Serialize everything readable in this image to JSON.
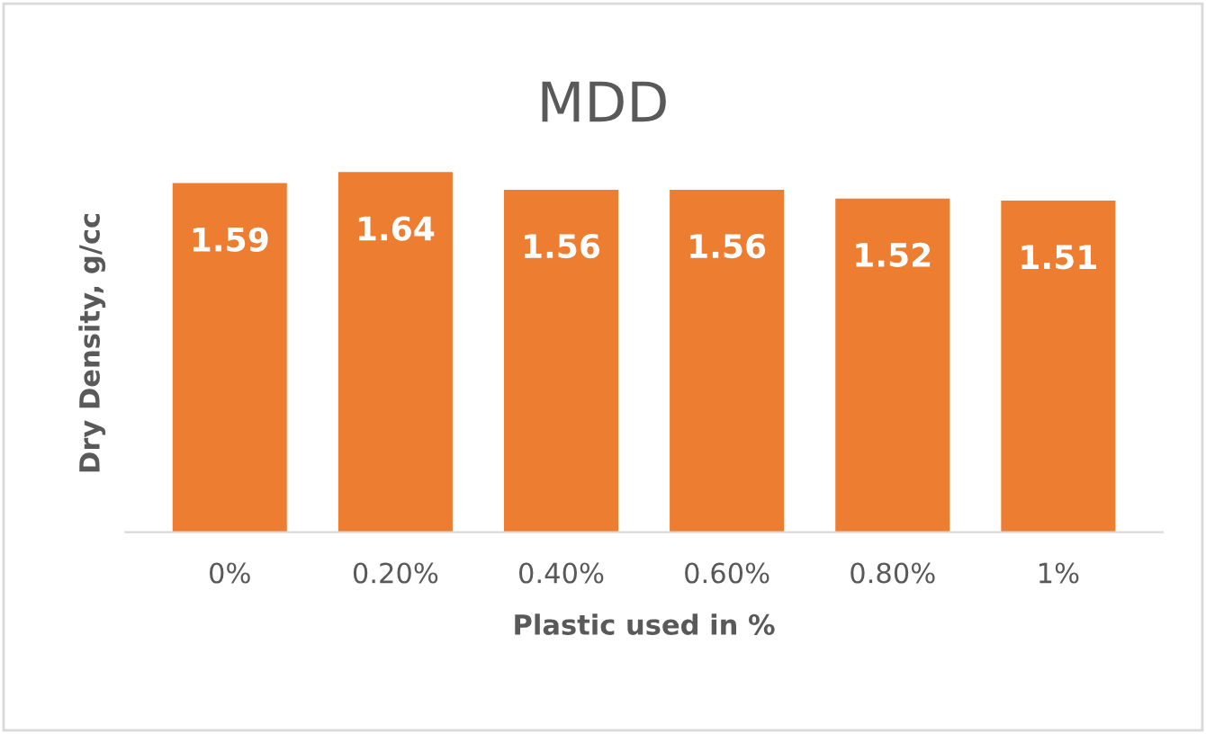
{
  "chart_data": {
    "type": "bar",
    "title": "MDD",
    "xlabel": "Plastic used in %",
    "ylabel": "Dry Density, g/cc",
    "categories": [
      "0%",
      "0.20%",
      "0.40%",
      "0.60%",
      "0.80%",
      "1%"
    ],
    "values": [
      1.59,
      1.64,
      1.56,
      1.56,
      1.52,
      1.51
    ],
    "color": "#ed7d31",
    "data_labels": true,
    "grid": false,
    "legend": false
  }
}
